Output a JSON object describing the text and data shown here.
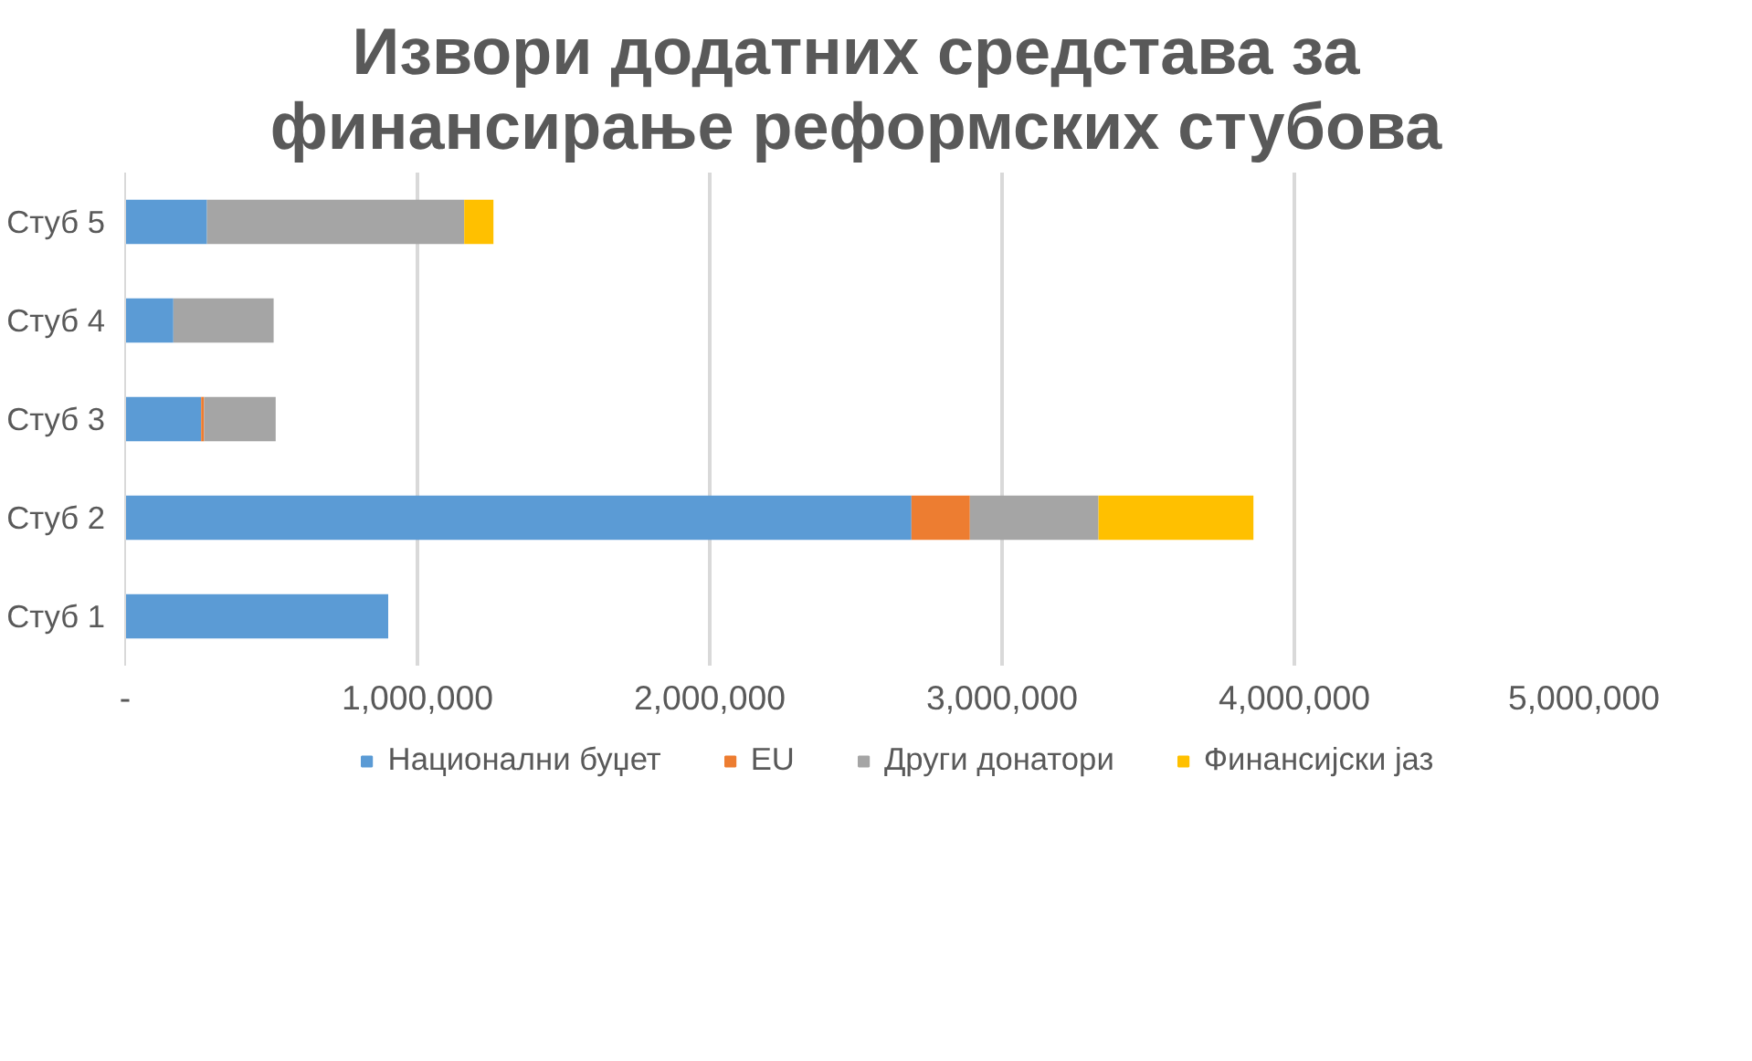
{
  "chart_data": {
    "type": "bar",
    "orientation": "horizontal",
    "stacked": true,
    "title": "Извори додатних средстава за финансирање реформских стубова",
    "categories": [
      "Стуб 5",
      "Стуб 4",
      "Стуб 3",
      "Стуб 2",
      "Стуб 1"
    ],
    "series": [
      {
        "name": "Национални буџет",
        "color": "#5b9bd5",
        "values": [
          280000,
          165000,
          260000,
          2690000,
          900000
        ]
      },
      {
        "name": "EU",
        "color": "#ed7d31",
        "values": [
          0,
          0,
          10000,
          200000,
          0
        ]
      },
      {
        "name": "Други донатори",
        "color": "#a5a5a5",
        "values": [
          880000,
          343000,
          245000,
          440000,
          0
        ]
      },
      {
        "name": "Финансијски јаз",
        "color": "#ffc000",
        "values": [
          100000,
          0,
          0,
          530000,
          0
        ]
      }
    ],
    "xlim": [
      0,
      5000000
    ],
    "xticks": [
      {
        "value": 0,
        "label": "-"
      },
      {
        "value": 1000000,
        "label": "1,000,000"
      },
      {
        "value": 2000000,
        "label": "2,000,000"
      },
      {
        "value": 3000000,
        "label": "3,000,000"
      },
      {
        "value": 4000000,
        "label": "4,000,000"
      },
      {
        "value": 5000000,
        "label": "5,000,000"
      }
    ],
    "grid": "x",
    "legend": "bottom"
  }
}
